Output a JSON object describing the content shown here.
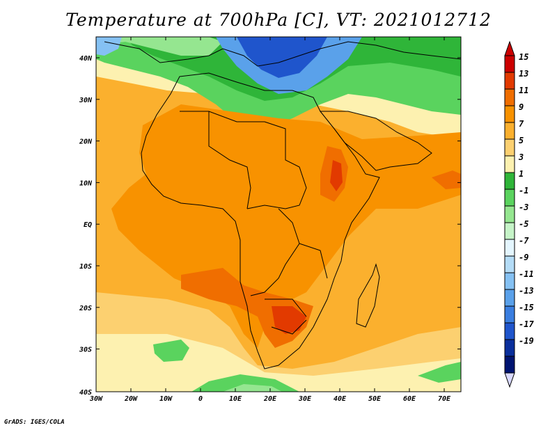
{
  "map": {
    "title": "Temperature at 700hPa [C], VT: 2021012712",
    "credit": "GrADS: IGES/COLA",
    "lat_labels": [
      "40N",
      "30N",
      "20N",
      "10N",
      "EQ",
      "10S",
      "20S",
      "30S",
      "40S"
    ],
    "lon_labels": [
      "30W",
      "20W",
      "10W",
      "0",
      "10E",
      "20E",
      "30E",
      "40E",
      "50E",
      "60E",
      "70E"
    ],
    "colorbar": {
      "labels": [
        "15",
        "13",
        "11",
        "9",
        "7",
        "5",
        "3",
        "1",
        "-1",
        "-3",
        "-5",
        "-7",
        "-9",
        "-11",
        "-13",
        "-15",
        "-17",
        "-19"
      ],
      "colors": [
        "#cc0000",
        "#e23a00",
        "#f06e00",
        "#f89200",
        "#fbb02e",
        "#fcd070",
        "#fdf1b0",
        "#2fb539",
        "#5ad35e",
        "#95e690",
        "#c6f4c8",
        "#e4f6ff",
        "#b4dcf7",
        "#85c1f3",
        "#5aa1ea",
        "#3a7ee0",
        "#1f55cc",
        "#0a2f9c",
        "#001471"
      ]
    },
    "field_colors": {
      "ocean_warm": "#fbb02e",
      "land_warm": "#f89200",
      "hot": "#f06e00",
      "very_hot": "#e23a00",
      "mild": "#fcd070",
      "cool": "#fdf1b0",
      "green": "#2fb539",
      "light_green": "#5ad35e",
      "pale_green": "#95e690",
      "blue": "#5aa1ea",
      "deep_blue": "#1f55cc"
    }
  }
}
